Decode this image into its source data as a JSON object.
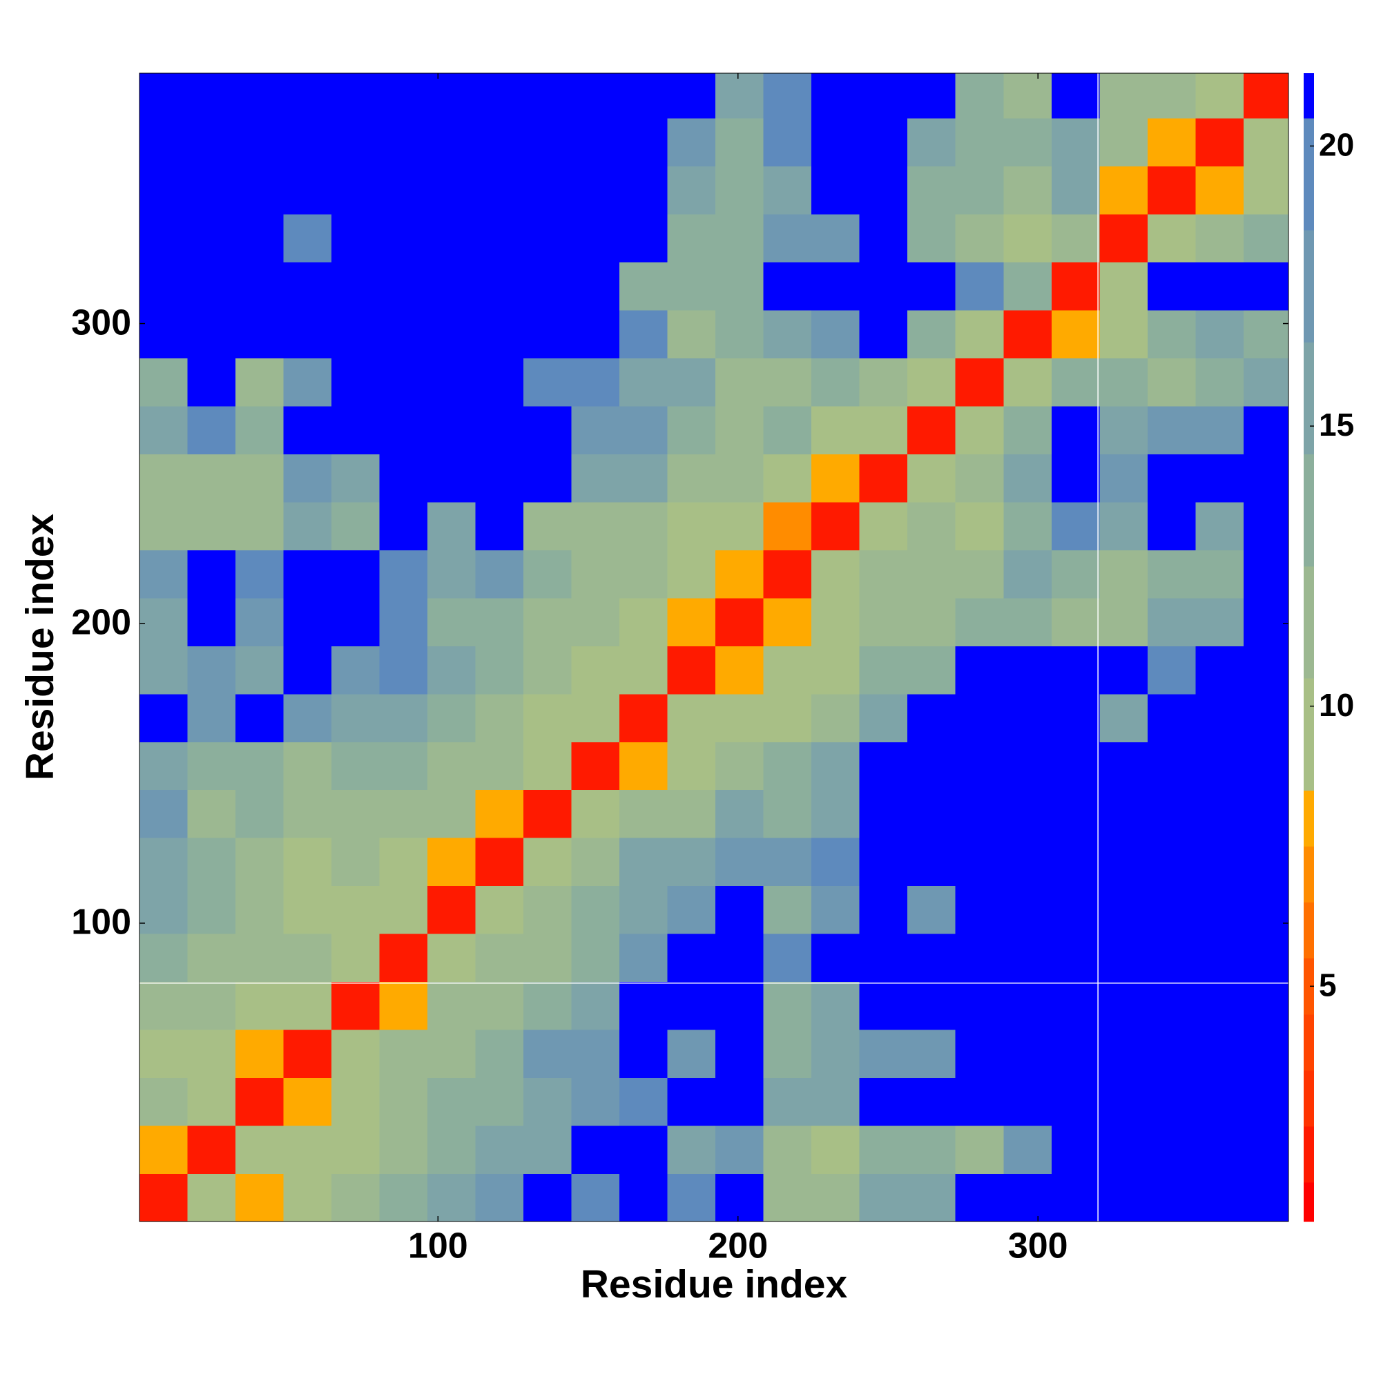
{
  "chart_data": {
    "type": "heatmap",
    "x_label": "Residue index",
    "y_label": "Residue index",
    "xlim": [
      0.5,
      383.5
    ],
    "ylim": [
      0.5,
      383.5
    ],
    "xticks": [
      100,
      200,
      300
    ],
    "yticks": [
      100,
      200,
      300
    ],
    "edges": [
      0.5,
      16.5,
      32.5,
      48.5,
      64.5,
      80.5,
      96.5,
      112.5,
      128.5,
      144.5,
      160.5,
      176.5,
      192.5,
      208.5,
      224.5,
      240.5,
      256.5,
      272.5,
      288.5,
      304.5,
      320.5,
      336.5,
      352.5,
      368.5,
      383.5
    ],
    "blank_x": [
      320
    ],
    "blank_y": [
      80
    ],
    "matrix": [
      [
        2,
        9,
        8,
        10,
        11,
        13,
        16,
        18,
        22,
        19,
        22,
        20,
        22,
        12,
        11,
        15,
        16,
        22,
        22,
        22,
        22,
        22,
        22,
        22
      ],
      [
        8,
        2,
        9,
        10,
        10,
        12,
        14,
        15,
        16,
        22,
        22,
        16,
        18,
        12,
        10,
        14,
        13,
        12,
        18,
        22,
        22,
        22,
        22,
        22
      ],
      [
        11,
        9,
        2,
        8,
        10,
        12,
        13,
        14,
        15,
        18,
        20,
        22,
        22,
        16,
        16,
        22,
        22,
        22,
        22,
        22,
        22,
        22,
        22,
        22
      ],
      [
        10,
        10,
        8,
        2,
        9,
        11,
        12,
        13,
        18,
        17,
        22,
        17,
        22,
        14,
        16,
        17,
        17,
        22,
        22,
        22,
        22,
        22,
        22,
        22
      ],
      [
        11,
        11,
        9,
        9,
        2,
        8,
        11,
        12,
        13,
        16,
        22,
        22,
        22,
        14,
        16,
        22,
        22,
        22,
        22,
        22,
        22,
        22,
        22,
        22
      ],
      [
        14,
        12,
        11,
        11,
        9,
        2,
        9,
        11,
        12,
        14,
        18,
        22,
        22,
        19,
        22,
        22,
        22,
        22,
        22,
        22,
        22,
        22,
        22,
        22
      ],
      [
        15,
        13,
        12,
        10,
        9,
        9,
        2,
        9,
        11,
        13,
        16,
        17,
        22,
        14,
        18,
        22,
        18,
        22,
        22,
        22,
        22,
        22,
        22,
        22
      ],
      [
        16,
        14,
        11,
        10,
        11,
        9,
        8,
        2,
        9,
        12,
        15,
        15,
        18,
        17,
        20,
        22,
        22,
        22,
        22,
        22,
        22,
        22,
        22,
        22
      ],
      [
        17,
        12,
        13,
        11,
        12,
        11,
        11,
        8,
        2,
        9,
        11,
        12,
        15,
        13,
        15,
        22,
        22,
        22,
        22,
        22,
        22,
        22,
        22,
        22
      ],
      [
        16,
        14,
        14,
        12,
        13,
        14,
        12,
        11,
        9,
        2,
        8,
        10,
        12,
        13,
        15,
        22,
        22,
        22,
        22,
        22,
        22,
        22,
        22,
        22
      ],
      [
        22,
        18,
        22,
        18,
        15,
        16,
        14,
        12,
        10,
        9,
        2,
        9,
        10,
        10,
        11,
        15,
        22,
        22,
        22,
        22,
        16,
        22,
        22,
        22
      ],
      [
        16,
        17,
        16,
        22,
        17,
        20,
        15,
        13,
        11,
        10,
        9,
        2,
        8,
        9,
        10,
        14,
        13,
        22,
        22,
        22,
        22,
        19,
        22,
        22
      ],
      [
        16,
        22,
        17,
        22,
        22,
        19,
        13,
        13,
        12,
        11,
        10,
        8,
        2,
        8,
        10,
        12,
        11,
        13,
        14,
        11,
        12,
        15,
        16,
        22
      ],
      [
        18,
        22,
        20,
        22,
        22,
        19,
        16,
        17,
        13,
        11,
        12,
        9,
        8,
        2,
        9,
        11,
        12,
        12,
        15,
        13,
        11,
        14,
        13,
        22
      ],
      [
        11,
        12,
        11,
        16,
        14,
        22,
        16,
        22,
        12,
        12,
        11,
        10,
        10,
        7,
        2,
        9,
        11,
        10,
        14,
        19,
        15,
        22,
        16,
        22
      ],
      [
        12,
        11,
        12,
        17,
        16,
        22,
        22,
        22,
        22,
        15,
        16,
        12,
        12,
        10,
        8,
        2,
        9,
        12,
        16,
        22,
        18,
        22,
        22,
        22
      ],
      [
        15,
        20,
        13,
        22,
        22,
        22,
        22,
        22,
        22,
        17,
        18,
        14,
        12,
        13,
        10,
        9,
        2,
        9,
        13,
        22,
        15,
        17,
        17,
        22
      ],
      [
        14,
        22,
        12,
        18,
        22,
        22,
        22,
        22,
        20,
        19,
        16,
        15,
        12,
        12,
        13,
        12,
        9,
        2,
        10,
        13,
        13,
        12,
        14,
        15
      ],
      [
        22,
        22,
        22,
        22,
        22,
        22,
        22,
        22,
        22,
        22,
        20,
        12,
        13,
        15,
        17,
        22,
        14,
        10,
        2,
        8,
        9,
        14,
        15,
        14
      ],
      [
        22,
        22,
        22,
        22,
        22,
        22,
        22,
        22,
        22,
        22,
        14,
        13,
        14,
        22,
        22,
        22,
        22,
        19,
        13,
        2,
        9,
        22,
        22,
        22
      ],
      [
        22,
        22,
        22,
        20,
        22,
        22,
        22,
        22,
        22,
        22,
        22,
        13,
        14,
        18,
        17,
        22,
        14,
        12,
        10,
        12,
        2,
        9,
        11,
        14
      ],
      [
        22,
        22,
        22,
        22,
        22,
        22,
        22,
        22,
        22,
        22,
        22,
        15,
        14,
        16,
        22,
        22,
        13,
        14,
        12,
        15,
        8,
        2,
        8,
        10
      ],
      [
        22,
        22,
        22,
        22,
        22,
        22,
        22,
        22,
        22,
        22,
        22,
        17,
        14,
        20,
        22,
        22,
        15,
        13,
        14,
        16,
        12,
        8,
        2,
        9
      ],
      [
        22,
        22,
        22,
        22,
        22,
        22,
        22,
        22,
        22,
        22,
        22,
        22,
        16,
        19,
        22,
        22,
        22,
        13,
        12,
        22,
        11,
        11,
        9,
        2
      ]
    ],
    "colorbar": {
      "lim": [
        0.8,
        21.3
      ],
      "ticks": [
        5,
        10,
        15,
        20
      ],
      "bounds": [
        0.8,
        1.5,
        2.5,
        3.5,
        4.5,
        5.5,
        6.5,
        7.5,
        8.5,
        10.5,
        12.5,
        14.5,
        16.5,
        18.5,
        20.5,
        21.3
      ],
      "colors": [
        "#ff0000",
        "#ff1a00",
        "#ff3300",
        "#ff4400",
        "#ff5500",
        "#ff7000",
        "#ff8c00",
        "#ffaa00",
        "#a8bf86",
        "#9cb891",
        "#8caf9c",
        "#7ea4a8",
        "#6f98b2",
        "#5e8abd",
        "#0000ff"
      ]
    }
  }
}
